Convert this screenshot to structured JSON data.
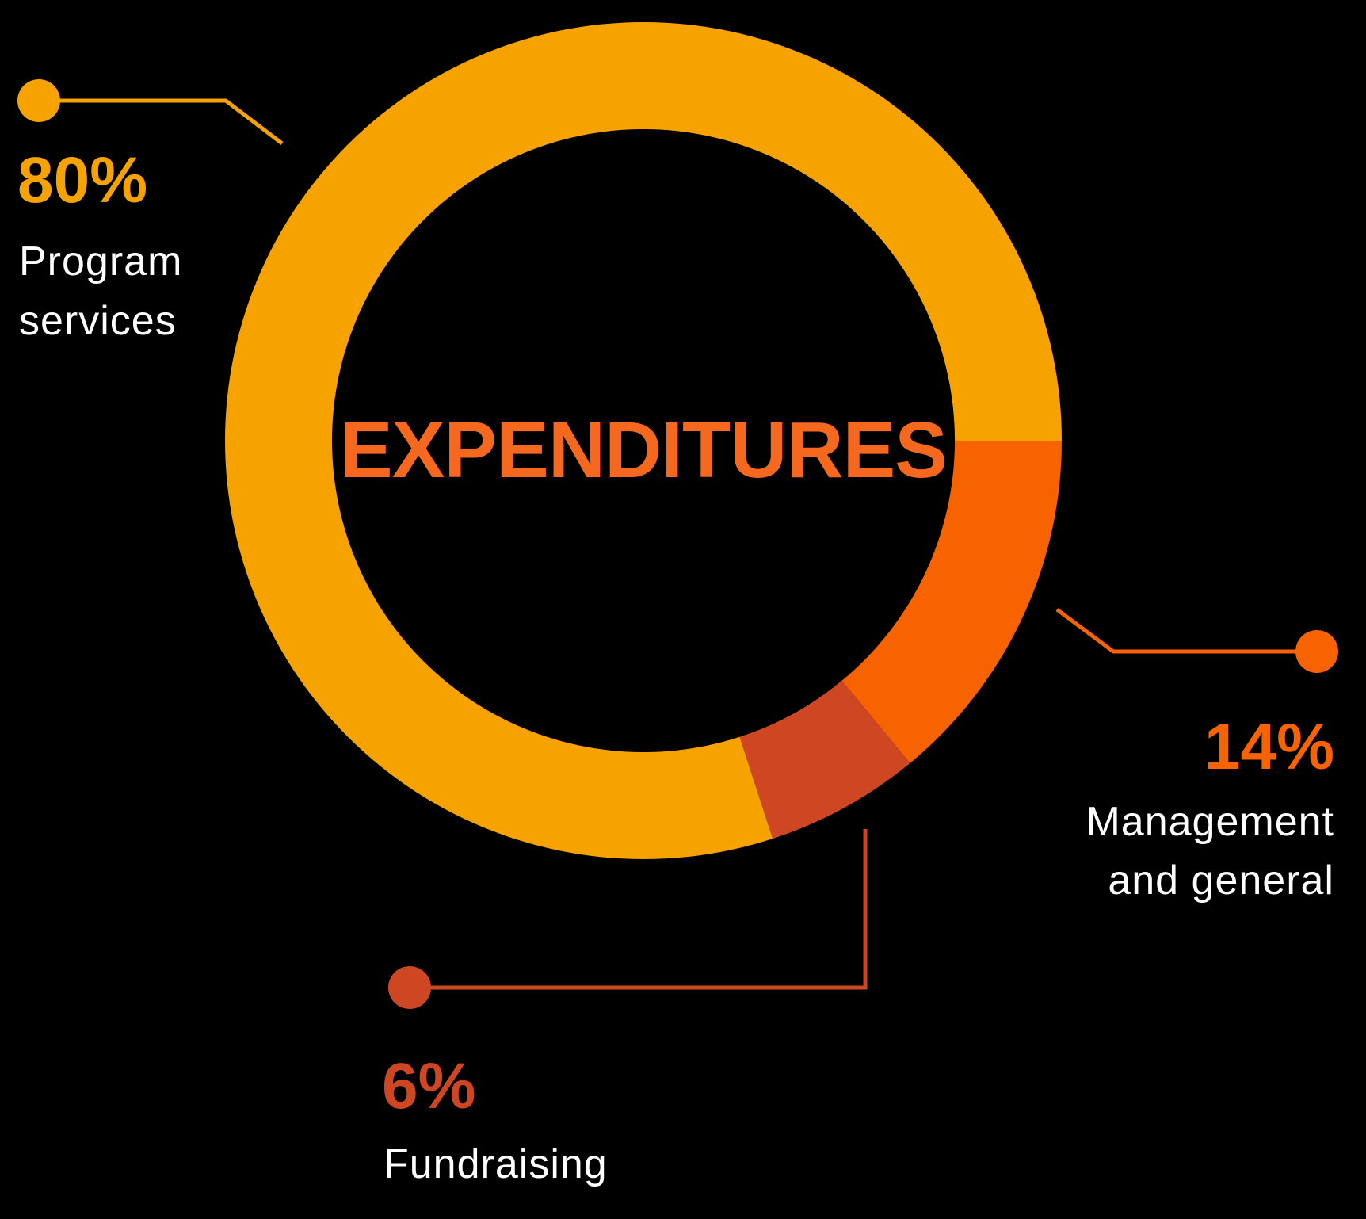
{
  "chart_data": {
    "type": "pie",
    "title": "EXPENDITURES",
    "title_color": "#f7681f",
    "legend": "none",
    "slices": [
      {
        "label_line1": "Program",
        "label_line2": "services",
        "value": 80,
        "value_label": "80%",
        "color": "#f6a200"
      },
      {
        "label_line1": "Management",
        "label_line2": "and general",
        "value": 14,
        "value_label": "14%",
        "color": "#f66300"
      },
      {
        "label_line1": "Fundraising",
        "label_line2": "",
        "value": 6,
        "value_label": "6%",
        "color": "#cf4722"
      }
    ]
  }
}
